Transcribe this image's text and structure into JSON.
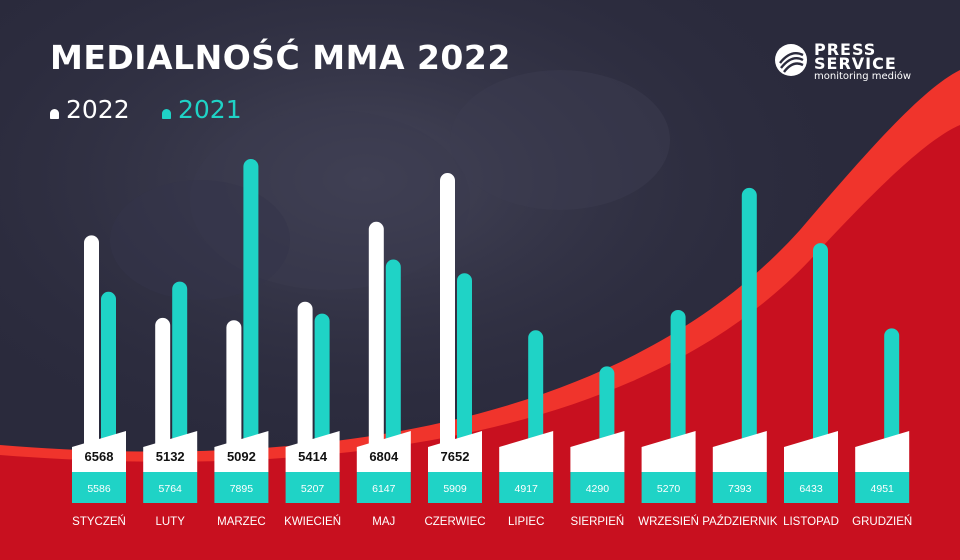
{
  "title": "MEDIALNOŚĆ MMA 2022",
  "legend": [
    {
      "label": "2022",
      "color": "#ffffff"
    },
    {
      "label": "2021",
      "color": "#1fd3c6"
    }
  ],
  "logo": {
    "line1": "PRESS",
    "line2": "SERVICE",
    "tagline": "monitoring mediów"
  },
  "colors": {
    "background": "#2a2a3c",
    "accent_red": "#c8101f",
    "bright_red": "#f0342c",
    "series_2022": "#ffffff",
    "series_2021": "#1fd3c6"
  },
  "chart_data": {
    "type": "bar",
    "title": "MEDIALNOŚĆ MMA 2022",
    "categories": [
      "STYCZEŃ",
      "LUTY",
      "MARZEC",
      "KWIECIEŃ",
      "MAJ",
      "CZERWIEC",
      "LIPIEC",
      "SIERPIEŃ",
      "WRZESIEŃ",
      "PAŹDZIERNIK",
      "LISTOPAD",
      "GRUDZIEŃ"
    ],
    "series": [
      {
        "name": "2022",
        "values": [
          6568,
          5132,
          5092,
          5414,
          6804,
          7652,
          null,
          null,
          null,
          null,
          null,
          null
        ]
      },
      {
        "name": "2021",
        "values": [
          5586,
          5764,
          7895,
          5207,
          6147,
          5909,
          4917,
          4290,
          5270,
          7393,
          6433,
          4951
        ]
      }
    ],
    "legend_position": "top-left",
    "grid": false
  }
}
